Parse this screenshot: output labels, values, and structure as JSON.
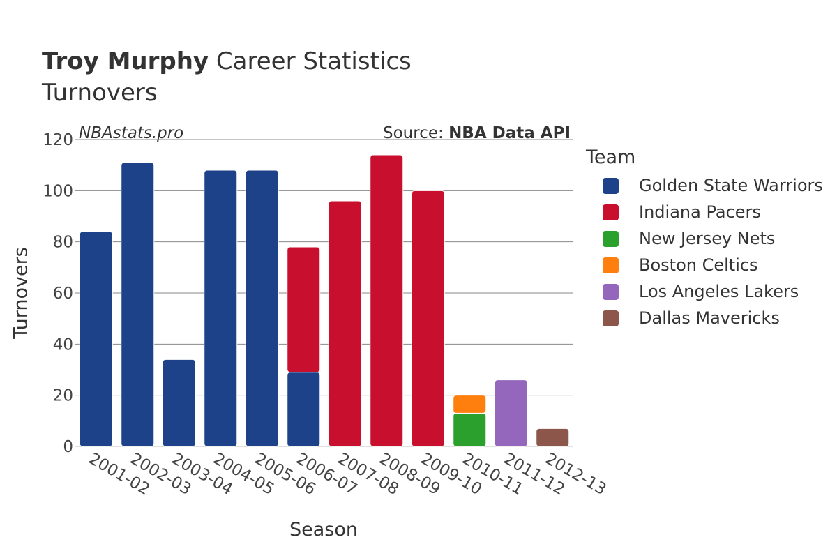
{
  "title": {
    "name": "Troy Murphy",
    "rest": "Career Statistics",
    "subtitle": "Turnovers"
  },
  "watermark": {
    "site": "NBAstats.pro",
    "source_prefix": "Source: ",
    "source_name": "NBA Data API"
  },
  "legend": {
    "title": "Team",
    "items": [
      {
        "label": "Golden State Warriors",
        "color": "#1d428a"
      },
      {
        "label": "Indiana Pacers",
        "color": "#c8102e"
      },
      {
        "label": "New Jersey Nets",
        "color": "#2ca02c"
      },
      {
        "label": "Boston Celtics",
        "color": "#ff7f0e"
      },
      {
        "label": "Los Angeles Lakers",
        "color": "#9467bd"
      },
      {
        "label": "Dallas Mavericks",
        "color": "#8c564b"
      }
    ]
  },
  "chart_data": {
    "type": "bar",
    "stacked": true,
    "xlabel": "Season",
    "ylabel": "Turnovers",
    "ylim": [
      0,
      120
    ],
    "yticks": [
      0,
      20,
      40,
      60,
      80,
      100,
      120
    ],
    "grid": true,
    "legend_position": "right",
    "categories": [
      "2001-02",
      "2002-03",
      "2003-04",
      "2004-05",
      "2005-06",
      "2006-07",
      "2007-08",
      "2008-09",
      "2009-10",
      "2010-11",
      "2011-12",
      "2012-13"
    ],
    "series": [
      {
        "name": "Golden State Warriors",
        "color": "#1d428a",
        "values": [
          84,
          111,
          34,
          108,
          108,
          29,
          0,
          0,
          0,
          0,
          0,
          0
        ]
      },
      {
        "name": "Indiana Pacers",
        "color": "#c8102e",
        "values": [
          0,
          0,
          0,
          0,
          0,
          49,
          96,
          114,
          100,
          0,
          0,
          0
        ]
      },
      {
        "name": "New Jersey Nets",
        "color": "#2ca02c",
        "values": [
          0,
          0,
          0,
          0,
          0,
          0,
          0,
          0,
          0,
          13,
          0,
          0
        ]
      },
      {
        "name": "Boston Celtics",
        "color": "#ff7f0e",
        "values": [
          0,
          0,
          0,
          0,
          0,
          0,
          0,
          0,
          0,
          7,
          0,
          0
        ]
      },
      {
        "name": "Los Angeles Lakers",
        "color": "#9467bd",
        "values": [
          0,
          0,
          0,
          0,
          0,
          0,
          0,
          0,
          0,
          0,
          26,
          0
        ]
      },
      {
        "name": "Dallas Mavericks",
        "color": "#8c564b",
        "values": [
          0,
          0,
          0,
          0,
          0,
          0,
          0,
          0,
          0,
          0,
          0,
          7
        ]
      }
    ]
  }
}
